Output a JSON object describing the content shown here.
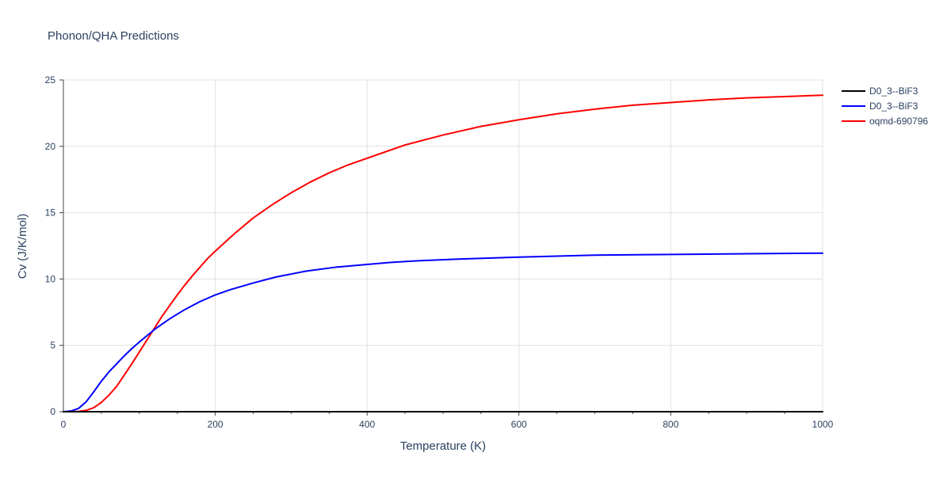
{
  "chart_data": {
    "type": "line",
    "title": "Phonon/QHA Predictions",
    "xlabel": "Temperature (K)",
    "ylabel": "Cv (J/K/mol)",
    "xlim": [
      0,
      1000
    ],
    "ylim": [
      0,
      25
    ],
    "x_ticks": [
      0,
      200,
      400,
      600,
      800,
      1000
    ],
    "x_tick_labels": [
      "0",
      "200",
      "400",
      "600",
      "800",
      "1000"
    ],
    "y_ticks": [
      0,
      5,
      10,
      15,
      20,
      25
    ],
    "y_tick_labels": [
      "0",
      "5",
      "10",
      "15",
      "20",
      "25"
    ],
    "grid": true,
    "legend_position": "top-right",
    "series": [
      {
        "name": "D0_3--BiF3",
        "color": "#000000",
        "x": [
          0,
          100,
          200,
          300,
          400,
          500,
          600,
          700,
          800,
          900,
          1000
        ],
        "y": [
          0,
          0,
          0,
          0,
          0,
          0,
          0,
          0,
          0,
          0,
          0
        ]
      },
      {
        "name": "D0_3--BiF3",
        "color": "#0000ff",
        "x": [
          0,
          10,
          20,
          30,
          40,
          50,
          60,
          70,
          80,
          90,
          100,
          120,
          140,
          160,
          180,
          200,
          220,
          250,
          280,
          320,
          360,
          400,
          430,
          470,
          520,
          600,
          700,
          800,
          900,
          1000
        ],
        "y": [
          0,
          0.05,
          0.25,
          0.75,
          1.5,
          2.3,
          3.0,
          3.6,
          4.2,
          4.75,
          5.25,
          6.2,
          7.0,
          7.7,
          8.3,
          8.8,
          9.2,
          9.7,
          10.15,
          10.6,
          10.9,
          11.1,
          11.25,
          11.38,
          11.5,
          11.65,
          11.8,
          11.85,
          11.9,
          11.95
        ]
      },
      {
        "name": "oqmd-690796",
        "color": "#ff0000",
        "x": [
          0,
          10,
          20,
          30,
          40,
          50,
          60,
          70,
          80,
          90,
          100,
          110,
          120,
          130,
          140,
          150,
          160,
          170,
          180,
          190,
          200,
          225,
          250,
          275,
          300,
          325,
          350,
          375,
          400,
          450,
          500,
          550,
          600,
          650,
          700,
          750,
          800,
          850,
          900,
          950,
          1000
        ],
        "y": [
          0,
          0,
          0.02,
          0.1,
          0.3,
          0.7,
          1.25,
          1.9,
          2.75,
          3.6,
          4.5,
          5.4,
          6.3,
          7.2,
          8.0,
          8.8,
          9.55,
          10.25,
          10.9,
          11.55,
          12.1,
          13.4,
          14.6,
          15.6,
          16.5,
          17.3,
          18.0,
          18.6,
          19.1,
          20.1,
          20.85,
          21.5,
          22.0,
          22.45,
          22.8,
          23.1,
          23.3,
          23.5,
          23.65,
          23.75,
          23.85
        ]
      }
    ]
  }
}
